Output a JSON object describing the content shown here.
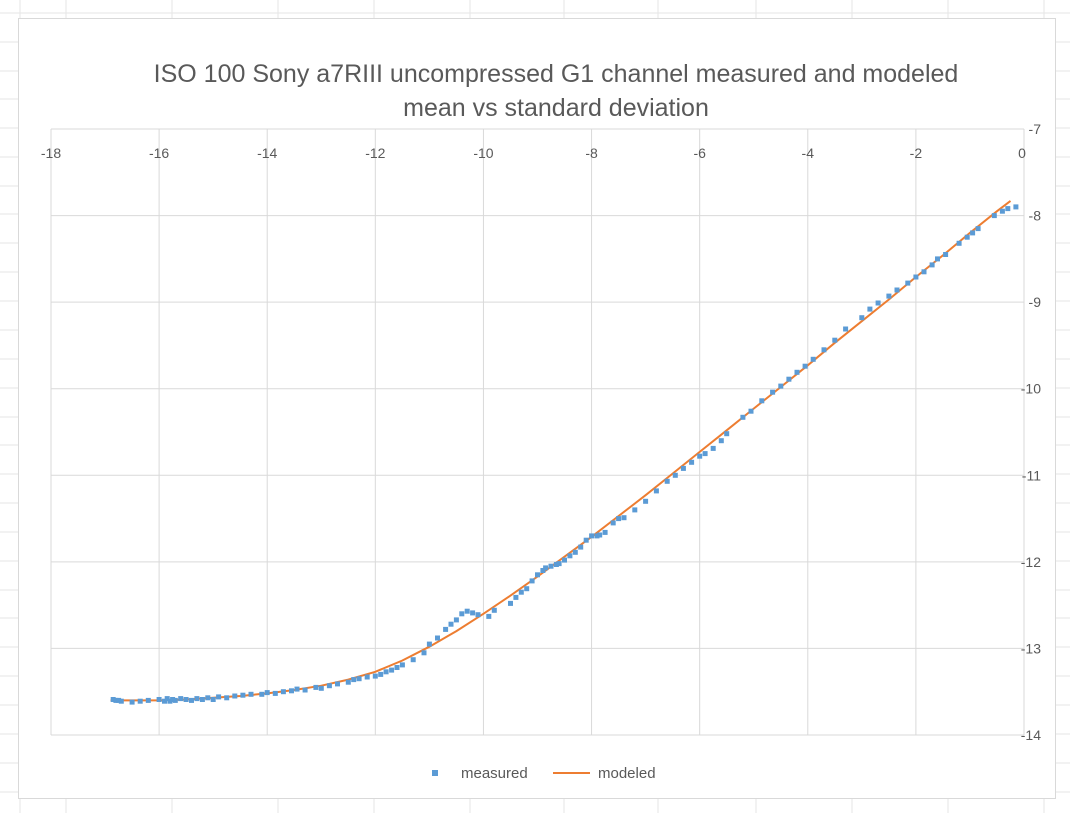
{
  "chart_data": {
    "type": "scatter",
    "title_lines": [
      "ISO 100 Sony a7RIII uncompressed G1 channel measured and modeled",
      "mean vs standard deviation"
    ],
    "xlabel": "",
    "ylabel": "",
    "xlim": [
      -18,
      0
    ],
    "ylim": [
      -14,
      -7
    ],
    "x_ticks": [
      -18,
      -16,
      -14,
      -12,
      -10,
      -8,
      -6,
      -4,
      -2,
      0
    ],
    "y_ticks": [
      -7,
      -8,
      -9,
      -10,
      -11,
      -12,
      -13,
      -14
    ],
    "x_tick_labels": [
      "-18",
      "-16",
      "-14",
      "-12",
      "-10",
      "-8",
      "-6",
      "-4",
      "-2",
      "0"
    ],
    "y_tick_labels": [
      "-7",
      "-8",
      "-9",
      "-10",
      "-11",
      "-12",
      "-13",
      "-14"
    ],
    "grid": true,
    "legend_position": "bottom",
    "colors": {
      "measured": "#5b9bd5",
      "modeled": "#ed7d31",
      "grid": "#d9d9d9",
      "axis_text": "#595959"
    },
    "series": [
      {
        "name": "measured",
        "kind": "markers",
        "x": [
          -16.85,
          -16.8,
          -16.75,
          -16.7,
          -16.5,
          -16.35,
          -16.2,
          -16.0,
          -15.9,
          -15.85,
          -15.8,
          -15.75,
          -15.7,
          -15.6,
          -15.5,
          -15.4,
          -15.3,
          -15.2,
          -15.1,
          -15.0,
          -14.9,
          -14.75,
          -14.6,
          -14.45,
          -14.3,
          -14.1,
          -14.0,
          -13.85,
          -13.7,
          -13.55,
          -13.45,
          -13.3,
          -13.1,
          -13.0,
          -12.85,
          -12.7,
          -12.5,
          -12.4,
          -12.3,
          -12.15,
          -12.0,
          -11.9,
          -11.8,
          -11.7,
          -11.6,
          -11.5,
          -11.3,
          -11.1,
          -11.0,
          -10.85,
          -10.7,
          -10.6,
          -10.5,
          -10.4,
          -10.3,
          -10.2,
          -10.1,
          -9.9,
          -9.8,
          -9.5,
          -9.4,
          -9.3,
          -9.2,
          -9.1,
          -9.0,
          -8.9,
          -8.85,
          -8.75,
          -8.65,
          -8.6,
          -8.5,
          -8.4,
          -8.3,
          -8.2,
          -8.1,
          -8.0,
          -7.9,
          -7.85,
          -7.75,
          -7.6,
          -7.5,
          -7.4,
          -7.2,
          -7.0,
          -6.8,
          -6.6,
          -6.45,
          -6.3,
          -6.15,
          -6.0,
          -5.9,
          -5.75,
          -5.6,
          -5.5,
          -5.2,
          -5.05,
          -4.85,
          -4.65,
          -4.5,
          -4.35,
          -4.2,
          -4.05,
          -3.9,
          -3.7,
          -3.5,
          -3.3,
          -3.0,
          -2.85,
          -2.7,
          -2.5,
          -2.35,
          -2.15,
          -2.0,
          -1.85,
          -1.7,
          -1.6,
          -1.45,
          -1.2,
          -1.05,
          -0.95,
          -0.85,
          -0.55,
          -0.4,
          -0.3,
          -0.15
        ],
        "y": [
          -13.59,
          -13.6,
          -13.6,
          -13.61,
          -13.62,
          -13.61,
          -13.6,
          -13.59,
          -13.61,
          -13.58,
          -13.61,
          -13.59,
          -13.6,
          -13.58,
          -13.59,
          -13.6,
          -13.58,
          -13.59,
          -13.57,
          -13.59,
          -13.56,
          -13.57,
          -13.55,
          -13.54,
          -13.53,
          -13.53,
          -13.51,
          -13.52,
          -13.5,
          -13.49,
          -13.47,
          -13.48,
          -13.45,
          -13.46,
          -13.43,
          -13.41,
          -13.39,
          -13.36,
          -13.35,
          -13.33,
          -13.32,
          -13.3,
          -13.27,
          -13.25,
          -13.22,
          -13.19,
          -13.13,
          -13.05,
          -12.95,
          -12.88,
          -12.78,
          -12.72,
          -12.67,
          -12.6,
          -12.57,
          -12.59,
          -12.61,
          -12.63,
          -12.56,
          -12.48,
          -12.41,
          -12.35,
          -12.31,
          -12.22,
          -12.15,
          -12.1,
          -12.07,
          -12.05,
          -12.03,
          -12.02,
          -11.98,
          -11.93,
          -11.89,
          -11.83,
          -11.75,
          -11.7,
          -11.7,
          -11.69,
          -11.66,
          -11.55,
          -11.5,
          -11.49,
          -11.4,
          -11.3,
          -11.18,
          -11.07,
          -11.0,
          -10.92,
          -10.85,
          -10.78,
          -10.75,
          -10.69,
          -10.6,
          -10.52,
          -10.33,
          -10.26,
          -10.14,
          -10.04,
          -9.97,
          -9.89,
          -9.81,
          -9.74,
          -9.66,
          -9.55,
          -9.44,
          -9.31,
          -9.18,
          -9.08,
          -9.01,
          -8.93,
          -8.86,
          -8.78,
          -8.71,
          -8.65,
          -8.57,
          -8.5,
          -8.45,
          -8.32,
          -8.25,
          -8.2,
          -8.15,
          -8.0,
          -7.95,
          -7.92,
          -7.9
        ]
      },
      {
        "name": "modeled",
        "kind": "line",
        "x": [
          -16.9,
          -16.5,
          -16.0,
          -15.5,
          -15.0,
          -14.5,
          -14.0,
          -13.5,
          -13.0,
          -12.5,
          -12.0,
          -11.5,
          -11.0,
          -10.5,
          -10.0,
          -9.5,
          -9.0,
          -8.5,
          -8.0,
          -7.5,
          -7.0,
          -6.5,
          -6.0,
          -5.5,
          -5.0,
          -4.5,
          -4.0,
          -3.5,
          -3.0,
          -2.5,
          -2.0,
          -1.5,
          -1.0,
          -0.5,
          -0.25
        ],
        "y": [
          -13.6,
          -13.6,
          -13.6,
          -13.59,
          -13.57,
          -13.55,
          -13.52,
          -13.48,
          -13.43,
          -13.36,
          -13.27,
          -13.14,
          -12.98,
          -12.8,
          -12.6,
          -12.39,
          -12.17,
          -11.94,
          -11.71,
          -11.47,
          -11.23,
          -10.98,
          -10.73,
          -10.48,
          -10.23,
          -9.98,
          -9.73,
          -9.47,
          -9.22,
          -8.97,
          -8.71,
          -8.46,
          -8.2,
          -7.95,
          -7.83
        ]
      }
    ]
  }
}
